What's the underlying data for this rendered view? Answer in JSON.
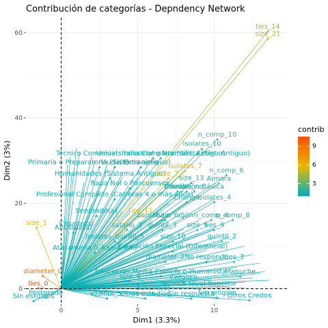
{
  "chart_data": {
    "type": "scatter",
    "title": "Contribución de categorías - Depndency Network",
    "xlabel": "Dim1 (3.3%)",
    "ylabel": "Dim2 (3%)",
    "xlim": [
      -2.3,
      14.8
    ],
    "ylim": [
      -3.6,
      63.5
    ],
    "x_ticks": [
      0,
      5,
      10
    ],
    "y_ticks": [
      0,
      20,
      40,
      60
    ],
    "grid": true,
    "origin_lines": "dashed",
    "legend": {
      "title": "contrib",
      "position": "right",
      "ticks": [
        3,
        6,
        9
      ]
    },
    "color_scale": [
      "#00AFBB",
      "#E7B800",
      "#FC4E07"
    ],
    "points": [
      {
        "label": "ties_14",
        "x": 13.5,
        "y": 60.3,
        "contrib": 4.6
      },
      {
        "label": "size_21",
        "x": 13.5,
        "y": 58.6,
        "contrib": 4.6
      },
      {
        "label": "n_comp_10",
        "x": 10.2,
        "y": 35.0,
        "contrib": 2.4
      },
      {
        "label": "isolates_10",
        "x": 9.2,
        "y": 32.8,
        "contrib": 2.2
      },
      {
        "label": "Técnico Comercial, Industrial o Normalista (Sist. Antiguo)",
        "x": 6.0,
        "y": 30.6,
        "contrib": 1.3
      },
      {
        "label": "Universitaria Completa (Sist. Antiguo)",
        "x": 6.5,
        "y": 30.6,
        "contrib": 1.3
      },
      {
        "label": "Primaria o Preparatoria (Sistema antiguo)",
        "x": 2.5,
        "y": 28.5,
        "contrib": 1.2
      },
      {
        "label": "Viuda(o)",
        "x": 3.5,
        "y": 28.5,
        "contrib": 1.2
      },
      {
        "label": "Extranjero",
        "x": 5.2,
        "y": 28.5,
        "contrib": 1.2
      },
      {
        "label": "isolates_7",
        "x": 8.1,
        "y": 27.6,
        "contrib": 5.5
      },
      {
        "label": "n_comp_6",
        "x": 10.8,
        "y": 26.6,
        "contrib": 2.3
      },
      {
        "label": "Humanidades (Sistema Antiguo)",
        "x": 3.2,
        "y": 25.9,
        "contrib": 1.2
      },
      {
        "label": "size_7",
        "x": 7.0,
        "y": 25.9,
        "contrib": 5.8
      },
      {
        "label": "size_13",
        "x": 8.5,
        "y": 24.8,
        "contrib": 2.0
      },
      {
        "label": "Aimara",
        "x": 10.3,
        "y": 24.7,
        "contrib": 1.8
      },
      {
        "label": "Rapa Nui o Pascuenses",
        "x": 4.5,
        "y": 23.6,
        "contrib": 1.3
      },
      {
        "label": "Hombre",
        "x": 7.6,
        "y": 22.8,
        "contrib": 1.6
      },
      {
        "label": "health_no",
        "x": 8.2,
        "y": 22.8,
        "contrib": 1.6
      },
      {
        "label": "Educación Básica",
        "x": 8.7,
        "y": 22.8,
        "contrib": 1.6
      },
      {
        "label": "Profesional Completo (Carreras 4 o más años)",
        "x": 3.5,
        "y": 21.0,
        "contrib": 1.3
      },
      {
        "label": "Chango",
        "x": 8.2,
        "y": 20.3,
        "contrib": 1.5
      },
      {
        "label": "isolates_4",
        "x": 10.0,
        "y": 20.3,
        "contrib": 1.9
      },
      {
        "label": "Separado(a)",
        "x": 2.3,
        "y": 17.1,
        "contrib": 1.2
      },
      {
        "label": "ties_11",
        "x": 5.2,
        "y": 17.2,
        "contrib": 5.6
      },
      {
        "label": "Mujer",
        "x": 6.6,
        "y": 16.1,
        "contrib": 1.4
      },
      {
        "label": "Lamana o Yagán",
        "x": 6.8,
        "y": 16.1,
        "contrib": 1.4
      },
      {
        "label": "n_comp_4",
        "x": 9.8,
        "y": 16.1,
        "contrib": 1.5
      },
      {
        "label": "n_comp_8",
        "x": 11.2,
        "y": 16.1,
        "contrib": 1.6
      },
      {
        "label": "Casado(a)",
        "x": 1.0,
        "y": 14.1,
        "contrib": 1.2
      },
      {
        "label": "Anulado(a)",
        "x": 0.8,
        "y": 13.2,
        "contrib": 1.2
      },
      {
        "label": "salario_3",
        "x": 4.3,
        "y": 13.8,
        "contrib": 1.3
      },
      {
        "label": "quintil_3",
        "x": 6.6,
        "y": 13.8,
        "contrib": 1.3
      },
      {
        "label": "size_5",
        "x": 8.9,
        "y": 13.8,
        "contrib": 1.4
      },
      {
        "label": "ties_9",
        "x": 10.0,
        "y": 13.8,
        "contrib": 1.4
      },
      {
        "label": "isolates_quintil_5",
        "x": 3.5,
        "y": 11.1,
        "contrib": 1.2
      },
      {
        "label": "size_10",
        "x": 7.3,
        "y": 11.1,
        "contrib": 1.3
      },
      {
        "label": "quintil_2",
        "x": 10.5,
        "y": 11.1,
        "contrib": 1.3
      },
      {
        "label": "Atacameño (Likan-Antai)",
        "x": 2.2,
        "y": 8.5,
        "contrib": 1.2
      },
      {
        "label": "diameter_2",
        "x": 6.8,
        "y": 6.3,
        "contrib": 1.3
      },
      {
        "label": "No responde",
        "x": 9.5,
        "y": 6.3,
        "contrib": 1.3
      },
      {
        "label": "ties_3",
        "x": 11.3,
        "y": 6.3,
        "contrib": 1.3
      },
      {
        "label": "Educación Especial (Diferencial)",
        "x": 7.3,
        "y": 8.8,
        "contrib": 1.3
      },
      {
        "label": "Educación Media Científico-Humanista",
        "x": 6.5,
        "y": 2.9,
        "contrib": 1.2
      },
      {
        "label": "Mapuche",
        "x": 11.7,
        "y": 2.9,
        "contrib": 1.2
      },
      {
        "label": "size_1",
        "x": -1.6,
        "y": 14.3,
        "contrib": 6.0
      },
      {
        "label": "diameter_0",
        "x": -1.2,
        "y": 3.0,
        "contrib": 8.9
      },
      {
        "label": "ties_0",
        "x": -1.5,
        "y": 0.1,
        "contrib": 10.5
      },
      {
        "label": "Postgrado",
        "x": -1.0,
        "y": -2.1,
        "contrib": 1.1
      },
      {
        "label": "Sin estudios",
        "x": -1.8,
        "y": -2.9,
        "contrib": 1.1
      },
      {
        "label": "quintil_5",
        "x": 3.0,
        "y": -2.3,
        "contrib": 1.1
      },
      {
        "label": "Otros estudios",
        "x": 5.5,
        "y": -2.3,
        "contrib": 1.1
      },
      {
        "label": "Sin respuesta",
        "x": 8.5,
        "y": -2.3,
        "contrib": 1.1
      },
      {
        "label": "Sin religión",
        "x": 10.2,
        "y": -2.1,
        "contrib": 1.1
      },
      {
        "label": "Otros Credos",
        "x": 12.3,
        "y": -2.7,
        "contrib": 1.1
      },
      {
        "label": "salario_5",
        "x": 2.0,
        "y": -1.2,
        "contrib": 1.1
      },
      {
        "label": "Soltero(a)",
        "x": 6.0,
        "y": -0.9,
        "contrib": 1.1
      },
      {
        "label": "Técnico Nivel Superior",
        "x": 9.0,
        "y": 0.0,
        "contrib": 1.1
      },
      {
        "label": "size_4",
        "x": 4.5,
        "y": 1.8,
        "contrib": 1.1
      },
      {
        "label": "Católico",
        "x": 8.0,
        "y": 1.5,
        "contrib": 1.1
      }
    ],
    "line_targets": [
      [
        1,
        33
      ],
      [
        2,
        31
      ],
      [
        3,
        29
      ],
      [
        4,
        27
      ],
      [
        5,
        26
      ],
      [
        6,
        25
      ],
      [
        7,
        24
      ],
      [
        8,
        23
      ],
      [
        9,
        22
      ],
      [
        10,
        21
      ],
      [
        2,
        20
      ],
      [
        3,
        19
      ],
      [
        4,
        18
      ],
      [
        5,
        17
      ],
      [
        6,
        16
      ],
      [
        7,
        15
      ],
      [
        8,
        14
      ],
      [
        9,
        13
      ],
      [
        10,
        12
      ],
      [
        11,
        11
      ],
      [
        1,
        10
      ],
      [
        2,
        9
      ],
      [
        3,
        8
      ],
      [
        4,
        7
      ],
      [
        5,
        6
      ],
      [
        6,
        5
      ],
      [
        7,
        4
      ],
      [
        8,
        3
      ],
      [
        9,
        2
      ],
      [
        10,
        1
      ],
      [
        11,
        0.5
      ],
      [
        12,
        1.5
      ],
      [
        12.5,
        2.5
      ],
      [
        13,
        3.5
      ],
      [
        11.5,
        5
      ],
      [
        10.5,
        7
      ],
      [
        9.5,
        9
      ],
      [
        8.5,
        10.5
      ],
      [
        7.5,
        12
      ],
      [
        6.5,
        14
      ],
      [
        5.5,
        16
      ],
      [
        4.5,
        18
      ],
      [
        3.5,
        21
      ],
      [
        2.5,
        23
      ],
      [
        1.5,
        25
      ],
      [
        0.7,
        27
      ],
      [
        0.4,
        29
      ],
      [
        0.6,
        31
      ],
      [
        1.2,
        32
      ],
      [
        2.2,
        30
      ],
      [
        3,
        28
      ],
      [
        4,
        26
      ],
      [
        5,
        24
      ],
      [
        6,
        22
      ],
      [
        7,
        20
      ],
      [
        8,
        18
      ],
      [
        9,
        16
      ],
      [
        10,
        14
      ],
      [
        11,
        12
      ],
      [
        12,
        10
      ],
      [
        12.5,
        8
      ],
      [
        13,
        6
      ],
      [
        13.3,
        4
      ],
      [
        13.6,
        2
      ],
      [
        12,
        0.2
      ],
      [
        11,
        1.2
      ],
      [
        9.8,
        2.2
      ],
      [
        8.8,
        3.2
      ],
      [
        7.8,
        4.2
      ],
      [
        6.8,
        5.2
      ]
    ]
  }
}
